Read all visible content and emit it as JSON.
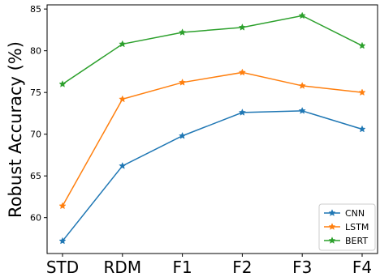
{
  "chart_data": {
    "type": "line",
    "title": "",
    "xlabel": "",
    "ylabel": "Robust Accuracy (%)",
    "categories": [
      "STD",
      "RDM",
      "F1",
      "F2",
      "F3",
      "F4"
    ],
    "ylim": [
      55.7,
      85.5
    ],
    "yticks": [
      60,
      65,
      70,
      75,
      80,
      85
    ],
    "grid": false,
    "legend_position": "bottom-right",
    "marker": "star",
    "series": [
      {
        "name": "CNN",
        "color": "#1f77b4",
        "values": [
          57.2,
          66.2,
          69.8,
          72.6,
          72.8,
          70.6
        ]
      },
      {
        "name": "LSTM",
        "color": "#ff7f0e",
        "values": [
          61.4,
          74.2,
          76.2,
          77.4,
          75.8,
          75.0
        ]
      },
      {
        "name": "BERT",
        "color": "#2ca02c",
        "values": [
          76.0,
          80.8,
          82.2,
          82.8,
          84.2,
          80.6
        ]
      }
    ]
  }
}
